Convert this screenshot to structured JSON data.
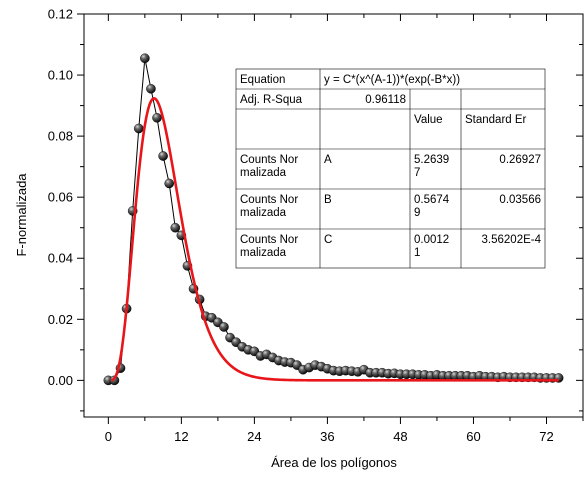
{
  "chart_data": {
    "type": "scatter",
    "title": "",
    "xlabel": "Área de los polígonos",
    "ylabel": "F-normalizada",
    "xlim": [
      -4,
      78
    ],
    "ylim": [
      -0.012,
      0.12
    ],
    "xticks": [
      0,
      12,
      24,
      36,
      48,
      60,
      72
    ],
    "xtick_labels": [
      "0",
      "12",
      "24",
      "36",
      "48",
      "60",
      "72"
    ],
    "yticks": [
      0.0,
      0.02,
      0.04,
      0.06,
      0.08,
      0.1,
      0.12
    ],
    "ytick_labels": [
      "0.00",
      "0.02",
      "0.04",
      "0.06",
      "0.08",
      "0.10",
      "0.12"
    ],
    "grid": false,
    "legend": "none",
    "series": [
      {
        "kind": "scatter-line",
        "x": [
          0,
          1,
          2,
          3,
          4,
          5,
          6,
          7,
          8,
          9,
          10,
          11,
          12,
          13,
          14,
          15,
          16,
          17,
          18,
          19,
          20,
          21,
          22,
          23,
          24,
          25,
          26,
          27,
          28,
          29,
          30,
          31,
          32,
          33,
          34,
          35,
          36,
          37,
          38,
          39,
          40,
          41,
          42,
          43,
          44,
          45,
          46,
          47,
          48,
          49,
          50,
          51,
          52,
          53,
          54,
          55,
          56,
          57,
          58,
          59,
          60,
          61,
          62,
          63,
          64,
          65,
          66,
          67,
          68,
          69,
          70,
          71,
          72,
          73,
          74
        ],
        "y": [
          0.0,
          0.0,
          0.004,
          0.0235,
          0.0555,
          0.0825,
          0.1055,
          0.0955,
          0.086,
          0.0735,
          0.0645,
          0.05,
          0.0475,
          0.0375,
          0.03,
          0.0265,
          0.021,
          0.0205,
          0.019,
          0.0175,
          0.014,
          0.0125,
          0.011,
          0.01,
          0.0095,
          0.008,
          0.0085,
          0.0075,
          0.0065,
          0.006,
          0.0058,
          0.005,
          0.0035,
          0.0042,
          0.005,
          0.0045,
          0.0038,
          0.0032,
          0.003,
          0.0032,
          0.003,
          0.0028,
          0.0035,
          0.0025,
          0.0025,
          0.0025,
          0.0022,
          0.0023,
          0.002,
          0.002,
          0.002,
          0.0018,
          0.0018,
          0.0015,
          0.0018,
          0.0015,
          0.0015,
          0.0015,
          0.0015,
          0.0015,
          0.0012,
          0.0015,
          0.0012,
          0.0012,
          0.001,
          0.0012,
          0.001,
          0.001,
          0.001,
          0.001,
          0.001,
          0.0008,
          0.0008,
          0.0008,
          0.0008
        ],
        "marker_color": "#1a1a1a",
        "line_color": "#000000"
      },
      {
        "kind": "fit-curve",
        "equation": "y = C*(x^(A-1))*(exp(-B*x))",
        "params": {
          "A": 5.26397,
          "B": 0.56749,
          "C": 0.00121
        },
        "x_range": [
          0.5,
          74
        ],
        "color": "#e8161b"
      }
    ],
    "stats_table": {
      "rows": [
        [
          "Equation",
          "y = C*(x^(A-1))*(exp(-B*x))",
          "",
          ""
        ],
        [
          "Adj. R-Squa",
          "0.96118",
          "",
          ""
        ],
        [
          "",
          "",
          "Value",
          "Standard Er"
        ],
        [
          "Counts Nor\nmalizada",
          "A",
          "5.2639\n7",
          "0.26927"
        ],
        [
          "Counts Nor\nmalizada",
          "B",
          "0.5674\n9",
          "0.03566"
        ],
        [
          "Counts Nor\nmalizada",
          "C",
          "0.0012\n1",
          "3.56202E-4"
        ]
      ]
    }
  }
}
